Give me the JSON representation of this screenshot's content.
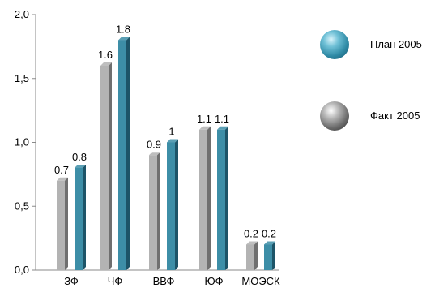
{
  "chart_data": {
    "type": "bar",
    "categories": [
      "ЗФ",
      "ЧФ",
      "ВВФ",
      "ЮФ",
      "МОЭСК"
    ],
    "series": [
      {
        "name": "Факт 2005",
        "values": [
          0.7,
          1.6,
          0.9,
          1.1,
          0.2
        ],
        "labels": [
          "0.7",
          "1.6",
          "0.9",
          "1.1",
          "0.2"
        ]
      },
      {
        "name": "План 2005",
        "values": [
          0.8,
          1.8,
          1.0,
          1.1,
          0.2
        ],
        "labels": [
          "0.8",
          "1.8",
          "1",
          "1.1",
          "0.2"
        ]
      }
    ],
    "yticks": [
      "0,0",
      "0,5",
      "1,0",
      "1,5",
      "2,0"
    ],
    "ylim": [
      0,
      2
    ],
    "grid": false,
    "legend_position": "right",
    "colors": {
      "fact": "#b3b3b3",
      "fact_side": "#6f6f6f",
      "plan": "#3d8ea7",
      "plan_side": "#1d5468",
      "axis": "#8a8a8a"
    }
  },
  "legend": {
    "plan_label": "План 2005",
    "fact_label": "Факт 2005"
  }
}
